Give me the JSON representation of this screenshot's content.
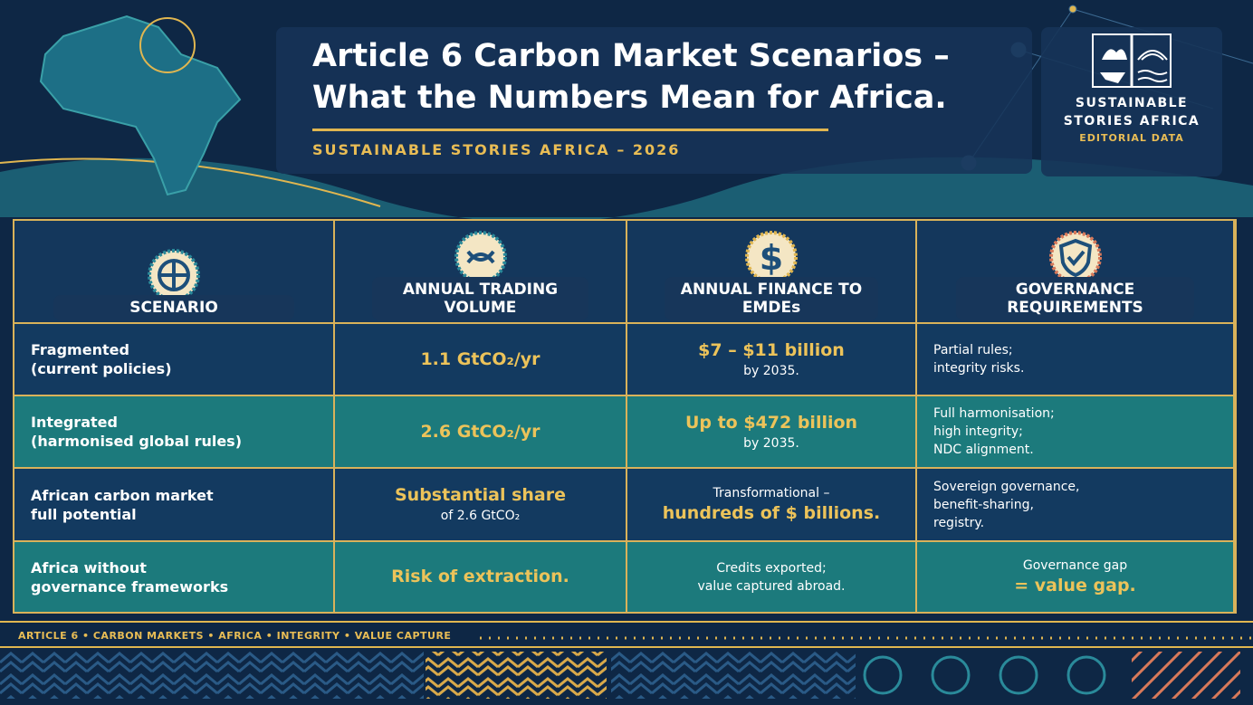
{
  "header": {
    "title_lines": [
      "Article 6 Carbon Market Scenarios –",
      "What the Numbers Mean for Africa."
    ],
    "subtitle": "SUSTAINABLE STORIES AFRICA – 2026",
    "logo": {
      "name_lines": [
        "SUSTAINABLE",
        "STORIES AFRICA"
      ],
      "tagline": "EDITORIAL DATA"
    }
  },
  "table": {
    "columns": [
      "SCENARIO",
      "ANNUAL TRADING VOLUME",
      "ANNUAL FINANCE TO EMDEs",
      "GOVERNANCE REQUIREMENTS"
    ],
    "rows": [
      {
        "scenario": [
          "Fragmented",
          "(current policies)"
        ],
        "volume": {
          "highlight": "1.1 GtCO₂/yr"
        },
        "finance": {
          "highlight": "$7 – $11 billion",
          "note": "by 2035."
        },
        "governance": {
          "lead": [
            "Partial rules;",
            "integrity risks."
          ]
        }
      },
      {
        "scenario": [
          "Integrated",
          "(harmonised global rules)"
        ],
        "volume": {
          "highlight": "2.6 GtCO₂/yr"
        },
        "finance": {
          "highlight": "Up to $472 billion",
          "note": "by 2035."
        },
        "governance": {
          "lead": [
            "Full harmonisation;",
            "high integrity;",
            "NDC alignment."
          ]
        }
      },
      {
        "scenario": [
          "African carbon market",
          "full potential"
        ],
        "volume": {
          "highlight": "Substantial share",
          "note": "of 2.6 GtCO₂"
        },
        "finance": {
          "lead": [
            "Transformational –"
          ],
          "highlight": "hundreds of $ billions."
        },
        "governance": {
          "lead": [
            "Sovereign governance,",
            "benefit-sharing,",
            "registry."
          ]
        }
      },
      {
        "scenario": [
          "Africa without",
          "governance frameworks"
        ],
        "volume": {
          "highlight": "Risk of extraction."
        },
        "finance": {
          "lead": [
            "Credits exported;",
            "value captured abroad."
          ]
        },
        "governance": {
          "lead": [
            "Governance gap"
          ],
          "highlight": "= value gap."
        }
      }
    ]
  },
  "footer": {
    "tags": "ARTICLE 6 • CARBON MARKETS • AFRICA • INTEGRITY • VALUE CAPTURE"
  }
}
